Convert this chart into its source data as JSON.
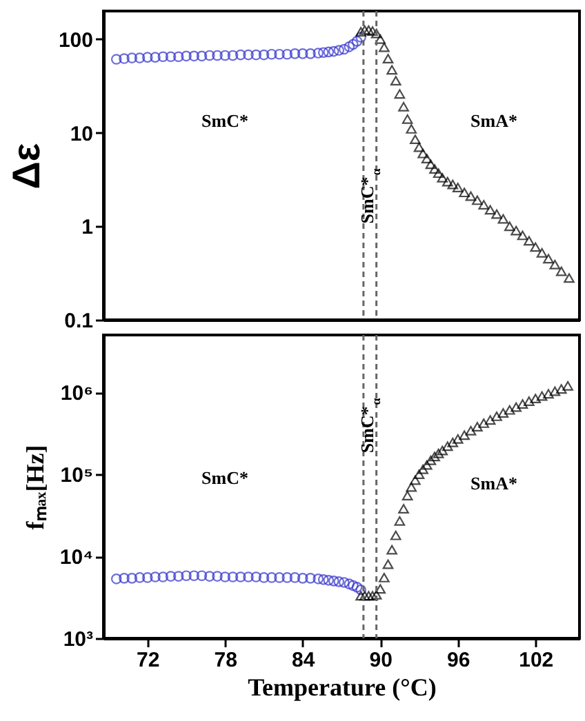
{
  "chart_data": [
    {
      "type": "scatter",
      "ylabel": "Δε",
      "xlim": [
        68.6,
        105.4
      ],
      "xticks": [
        72,
        78,
        84,
        90,
        96,
        102
      ],
      "ylim": [
        0.1,
        200
      ],
      "yticks": [
        0.1,
        1,
        10,
        100
      ],
      "log": "y",
      "tick_labels": "y",
      "series": [
        {
          "color": "#3333cc",
          "marker": "circle",
          "x": [
            69.6,
            70.2,
            70.8,
            71.4,
            72.0,
            72.6,
            73.2,
            73.8,
            74.4,
            75.0,
            75.6,
            76.2,
            76.8,
            77.4,
            78.0,
            78.6,
            79.2,
            79.8,
            80.4,
            81.0,
            81.6,
            82.2,
            82.8,
            83.4,
            84.0,
            84.6,
            85.2,
            85.6,
            86.0,
            86.4,
            86.8,
            87.2,
            87.6,
            87.9,
            88.2,
            88.5
          ],
          "values": [
            61,
            62,
            63,
            63,
            64,
            64,
            65,
            65,
            65,
            66,
            66,
            66,
            67,
            67,
            67,
            67,
            68,
            68,
            68,
            68,
            69,
            69,
            69,
            70,
            70,
            70,
            71,
            72,
            73,
            74,
            76,
            78,
            83,
            88,
            95,
            105
          ]
        },
        {
          "color": "#000000",
          "marker": "triangle",
          "x": [
            88.5,
            88.8,
            89.1,
            89.4,
            89.7,
            90.0,
            90.3,
            90.6,
            90.9,
            91.2,
            91.5,
            91.8,
            92.1,
            92.4,
            92.7,
            93.0,
            93.3,
            93.6,
            93.9,
            94.2,
            94.5,
            94.8,
            95.2,
            95.6,
            96.0,
            96.5,
            97.0,
            97.5,
            98.0,
            98.5,
            99.0,
            99.5,
            100.0,
            100.5,
            101.0,
            101.5,
            102.0,
            102.5,
            103.0,
            103.5,
            104.0,
            104.6
          ],
          "values": [
            120,
            125,
            125,
            122,
            115,
            100,
            82,
            62,
            47,
            36,
            26,
            19,
            14,
            11,
            8.5,
            7,
            6,
            5.3,
            4.6,
            4.1,
            3.7,
            3.3,
            3.0,
            2.8,
            2.6,
            2.3,
            2.1,
            1.9,
            1.7,
            1.5,
            1.35,
            1.2,
            1.0,
            0.9,
            0.8,
            0.7,
            0.6,
            0.52,
            0.45,
            0.39,
            0.33,
            0.28
          ]
        }
      ],
      "ref_lines": [
        {
          "axis": "x",
          "value": 88.7,
          "color": "#666666",
          "line_style": "dashed"
        },
        {
          "axis": "x",
          "value": 89.7,
          "color": "#666666",
          "line_style": "dashed"
        }
      ],
      "annotations": [
        "SmC*",
        "SmA*",
        {
          "text": "SmC*$_{α}$",
          "x": 89.0,
          "y": 1.9
        }
      ]
    },
    {
      "type": "scatter",
      "xlabel": "Temperature (°C)",
      "ylabel": "fₘₐₓ[Hz]",
      "xlim": [
        68.6,
        105.4
      ],
      "xticks": [
        72,
        78,
        84,
        90,
        96,
        102
      ],
      "ylim": [
        1000,
        5000000
      ],
      "yticks": [
        {
          "value": 1000,
          "label": "10³"
        },
        {
          "value": 10000,
          "label": "10⁴"
        },
        {
          "value": 100000,
          "label": "10⁵"
        },
        {
          "value": 1000000,
          "label": "10⁶"
        }
      ],
      "log": "y",
      "series": [
        {
          "color": "#3333cc",
          "marker": "circle",
          "x": [
            69.6,
            70.2,
            70.8,
            71.4,
            72.0,
            72.6,
            73.2,
            73.8,
            74.4,
            75.0,
            75.6,
            76.2,
            76.8,
            77.4,
            78.0,
            78.6,
            79.2,
            79.8,
            80.4,
            81.0,
            81.6,
            82.2,
            82.8,
            83.4,
            84.0,
            84.6,
            85.2,
            85.6,
            86.0,
            86.4,
            86.8,
            87.2,
            87.6,
            87.9,
            88.2,
            88.5
          ],
          "values": [
            5300,
            5400,
            5400,
            5500,
            5500,
            5600,
            5600,
            5700,
            5700,
            5800,
            5800,
            5800,
            5700,
            5700,
            5600,
            5600,
            5600,
            5600,
            5600,
            5500,
            5500,
            5500,
            5500,
            5500,
            5400,
            5400,
            5300,
            5200,
            5100,
            5000,
            4900,
            4800,
            4600,
            4400,
            4200,
            3900
          ]
        },
        {
          "color": "#000000",
          "marker": "triangle",
          "x": [
            88.5,
            88.8,
            89.1,
            89.4,
            89.7,
            90.0,
            90.3,
            90.6,
            90.9,
            91.2,
            91.5,
            91.8,
            92.1,
            92.4,
            92.7,
            93.0,
            93.3,
            93.6,
            93.9,
            94.2,
            94.5,
            94.8,
            95.2,
            95.6,
            96.0,
            96.5,
            97.0,
            97.5,
            98.0,
            98.5,
            99.0,
            99.5,
            100.0,
            100.5,
            101.0,
            101.5,
            102.0,
            102.5,
            103.0,
            103.5,
            104.0,
            104.5
          ],
          "values": [
            3300,
            3300,
            3300,
            3300,
            3400,
            4000,
            5500,
            8000,
            12000,
            18000,
            27000,
            38000,
            55000,
            70000,
            85000,
            100000,
            115000,
            130000,
            148000,
            165000,
            180000,
            195000,
            220000,
            245000,
            270000,
            300000,
            340000,
            380000,
            420000,
            460000,
            510000,
            560000,
            610000,
            660000,
            720000,
            780000,
            840000,
            900000,
            960000,
            1030000,
            1100000,
            1200000
          ]
        }
      ],
      "ref_lines": [
        {
          "axis": "x",
          "value": 88.7,
          "color": "#666666",
          "line_style": "dashed"
        },
        {
          "axis": "x",
          "value": 89.7,
          "color": "#666666",
          "line_style": "dashed"
        }
      ],
      "annotations": [
        "SmC*",
        "SmA*",
        {
          "text": "SmC*$_{α}$",
          "x": 89.0,
          "y": 350000
        }
      ]
    }
  ]
}
